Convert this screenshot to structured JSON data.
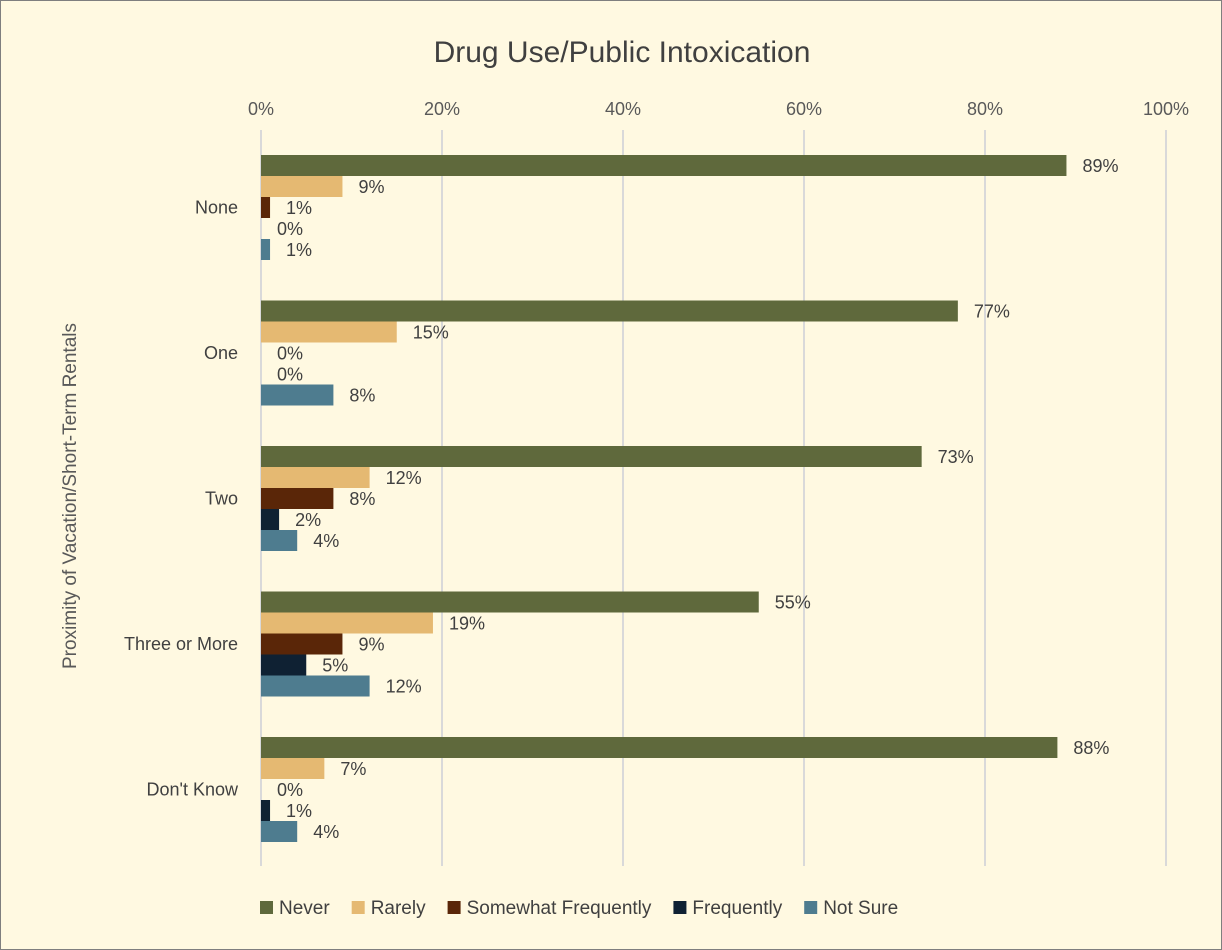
{
  "chart_data": {
    "type": "bar",
    "orientation": "horizontal",
    "title": "Drug Use/Public Intoxication",
    "ylabel": "Proximity of Vacation/Short-Term Rentals",
    "xlabel": "",
    "xlim": [
      0,
      100
    ],
    "xticks": [
      0,
      20,
      40,
      60,
      80,
      100
    ],
    "tick_suffix": "%",
    "x_axis_position": "top",
    "grid": true,
    "legend_position": "bottom",
    "categories": [
      "None",
      "One",
      "Two",
      "Three or More",
      "Don't Know"
    ],
    "series": [
      {
        "name": "Never",
        "color": "#5f693c",
        "values": [
          89,
          77,
          73,
          55,
          88
        ]
      },
      {
        "name": "Rarely",
        "color": "#e5b972",
        "values": [
          9,
          15,
          12,
          19,
          7
        ]
      },
      {
        "name": "Somewhat Frequently",
        "color": "#5a2608",
        "values": [
          1,
          0,
          8,
          9,
          0
        ]
      },
      {
        "name": "Frequently",
        "color": "#0f2133",
        "values": [
          0,
          0,
          2,
          5,
          1
        ]
      },
      {
        "name": "Not Sure",
        "color": "#4e7c8f",
        "values": [
          1,
          8,
          4,
          12,
          4
        ]
      }
    ]
  }
}
